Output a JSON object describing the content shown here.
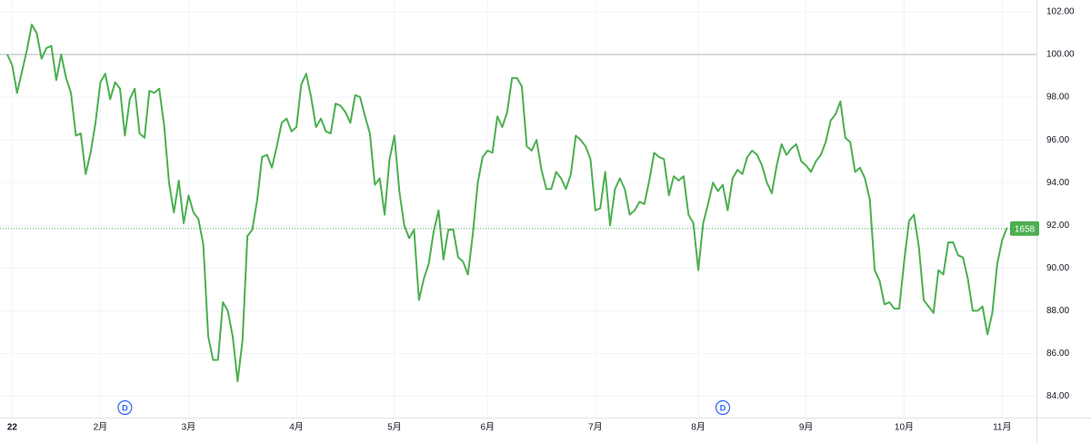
{
  "chart_data": {
    "type": "line",
    "series": [
      {
        "color": "#4caf50",
        "values": [
          100.0,
          99.5,
          98.2,
          99.2,
          100.2,
          101.4,
          101.0,
          99.8,
          100.3,
          100.4,
          98.8,
          100.0,
          98.9,
          98.2,
          96.2,
          96.3,
          94.4,
          95.4,
          96.8,
          98.7,
          99.1,
          97.9,
          98.7,
          98.4,
          96.2,
          97.9,
          98.4,
          96.3,
          96.1,
          98.3,
          98.2,
          98.4,
          96.7,
          94.0,
          92.6,
          94.1,
          92.1,
          93.4,
          92.6,
          92.3,
          91.1,
          86.8,
          85.7,
          85.7,
          88.4,
          88.0,
          86.8,
          84.7,
          86.6,
          91.5,
          91.8,
          93.2,
          95.2,
          95.3,
          94.7,
          95.7,
          96.8,
          97.0,
          96.4,
          96.6,
          98.6,
          99.1,
          98.0,
          96.6,
          97.0,
          96.4,
          96.3,
          97.7,
          97.6,
          97.3,
          96.8,
          98.1,
          98.0,
          97.1,
          96.3,
          93.9,
          94.2,
          92.5,
          95.1,
          96.2,
          93.6,
          92.0,
          91.4,
          91.8,
          88.5,
          89.5,
          90.2,
          91.7,
          92.7,
          90.4,
          91.8,
          91.8,
          90.5,
          90.3,
          89.7,
          91.6,
          94.0,
          95.2,
          95.5,
          95.4,
          97.1,
          96.6,
          97.3,
          98.9,
          98.9,
          98.5,
          95.7,
          95.5,
          96.0,
          94.6,
          93.7,
          93.7,
          94.5,
          94.2,
          93.7,
          94.4,
          96.2,
          96.0,
          95.7,
          95.1,
          92.7,
          92.8,
          94.5,
          92.0,
          93.7,
          94.2,
          93.7,
          92.5,
          92.7,
          93.1,
          93.0,
          94.1,
          95.4,
          95.2,
          95.1,
          93.4,
          94.3,
          94.1,
          94.3,
          92.5,
          92.1,
          89.9,
          92.1,
          93.0,
          94.0,
          93.6,
          93.9,
          92.7,
          94.2,
          94.6,
          94.4,
          95.2,
          95.5,
          95.3,
          94.8,
          94.0,
          93.5,
          94.8,
          95.8,
          95.3,
          95.6,
          95.8,
          95.0,
          94.8,
          94.5,
          95.0,
          95.3,
          95.9,
          96.9,
          97.2,
          97.8,
          96.1,
          95.9,
          94.5,
          94.7,
          94.2,
          93.2,
          89.9,
          89.4,
          88.3,
          88.4,
          88.1,
          88.1,
          90.3,
          92.2,
          92.5,
          91.0,
          88.5,
          88.2,
          87.9,
          89.9,
          89.7,
          91.2,
          91.2,
          90.6,
          90.5,
          89.5,
          88.0,
          88.0,
          88.2,
          86.9,
          87.9,
          90.2,
          91.3,
          91.9
        ]
      }
    ],
    "xlim": [
      0,
      210
    ],
    "xticks": [
      {
        "value": 1,
        "label": "22"
      },
      {
        "value": 19,
        "label": "2月"
      },
      {
        "value": 37,
        "label": "3月"
      },
      {
        "value": 59,
        "label": "4月"
      },
      {
        "value": 79,
        "label": "5月"
      },
      {
        "value": 98,
        "label": "6月"
      },
      {
        "value": 120,
        "label": "7月"
      },
      {
        "value": 141,
        "label": "8月"
      },
      {
        "value": 163,
        "label": "9月"
      },
      {
        "value": 183,
        "label": "10月"
      },
      {
        "value": 203,
        "label": "11月"
      }
    ],
    "ylim": [
      83.0,
      102.55
    ],
    "yticks": [
      {
        "value": 84,
        "label": "84.00"
      },
      {
        "value": 86,
        "label": "86.00"
      },
      {
        "value": 88,
        "label": "88.00"
      },
      {
        "value": 90,
        "label": "90.00"
      },
      {
        "value": 92,
        "label": "92.00"
      },
      {
        "value": 94,
        "label": "94.00"
      },
      {
        "value": 96,
        "label": "96.00"
      },
      {
        "value": 98,
        "label": "98.00"
      },
      {
        "value": 100,
        "label": "100.00"
      },
      {
        "value": 102,
        "label": "102.00"
      }
    ],
    "grid": true,
    "reference_line": 100,
    "current_marker": {
      "value": 91.85,
      "label": "1658"
    },
    "events": [
      {
        "x": 24,
        "label": "D"
      },
      {
        "x": 146,
        "label": "D"
      }
    ]
  }
}
